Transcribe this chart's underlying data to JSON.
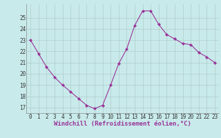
{
  "x": [
    0,
    1,
    2,
    3,
    4,
    5,
    6,
    7,
    8,
    9,
    10,
    11,
    12,
    13,
    14,
    15,
    16,
    17,
    18,
    19,
    20,
    21,
    22,
    23
  ],
  "y": [
    23.0,
    21.8,
    20.6,
    19.7,
    19.0,
    18.4,
    17.8,
    17.2,
    16.9,
    17.2,
    19.0,
    20.9,
    22.2,
    24.3,
    25.6,
    25.6,
    24.4,
    23.5,
    23.1,
    22.7,
    22.6,
    21.9,
    21.5,
    21.0
  ],
  "line_color": "#993399",
  "marker": "D",
  "marker_size": 2,
  "bg_color": "#c8eaea",
  "grid_color": "#b0cccc",
  "xlabel": "Windchill (Refroidissement éolien,°C)",
  "ylim": [
    16.5,
    26.2
  ],
  "yticks": [
    17,
    18,
    19,
    20,
    21,
    22,
    23,
    24,
    25
  ],
  "xticks": [
    0,
    1,
    2,
    3,
    4,
    5,
    6,
    7,
    8,
    9,
    10,
    11,
    12,
    13,
    14,
    15,
    16,
    17,
    18,
    19,
    20,
    21,
    22,
    23
  ],
  "tick_fontsize": 5.5,
  "xlabel_fontsize": 6.5
}
